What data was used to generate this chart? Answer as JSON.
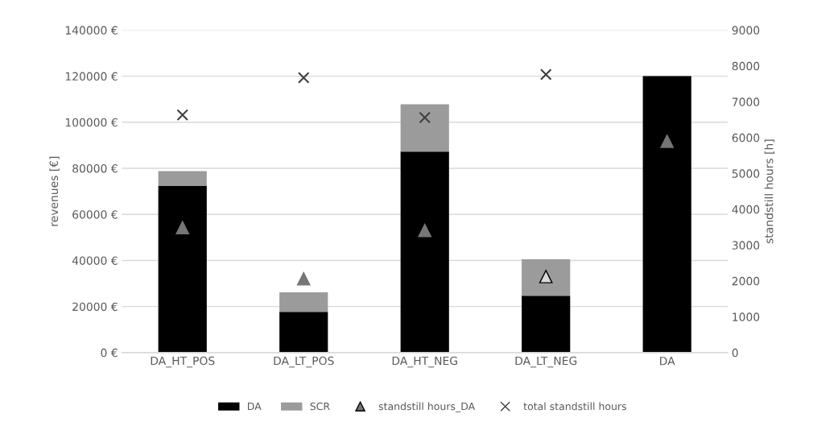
{
  "chart_data": {
    "type": "bar",
    "stacked": true,
    "categories": [
      "DA_HT_POS",
      "DA_LT_POS",
      "DA_HT_NEG",
      "DA_LT_NEG",
      "DA"
    ],
    "series": [
      {
        "name": "DA",
        "color": "#000000",
        "values": [
          72300,
          17700,
          87300,
          24700,
          120000
        ]
      },
      {
        "name": "SCR",
        "color": "#9b9b9b",
        "values": [
          6500,
          8500,
          20500,
          15800,
          null
        ]
      },
      {
        "name": "standstill hours_DA",
        "type": "scatter",
        "axis": "y2",
        "marker": "triangle",
        "color": "#767676",
        "colors": [
          "#767676",
          "#767676",
          "#767676",
          "#d9d9d9",
          "#767676"
        ],
        "values": [
          3490,
          2060,
          3410,
          2120,
          5900
        ]
      },
      {
        "name": "total standstill hours",
        "type": "scatter",
        "axis": "y2",
        "marker": "cross",
        "color": "#404040",
        "values": [
          6630,
          7670,
          6560,
          7760,
          null
        ]
      }
    ],
    "ylabel": "revenues [€]",
    "y2label": "standstill hours [h]",
    "ylim": [
      0,
      140000
    ],
    "yticks": [
      {
        "value": 0,
        "label": "0 €"
      },
      {
        "value": 20000,
        "label": "20000 €"
      },
      {
        "value": 40000,
        "label": "40000 €"
      },
      {
        "value": 60000,
        "label": "60000 €"
      },
      {
        "value": 80000,
        "label": "80000 €"
      },
      {
        "value": 100000,
        "label": "100000 €"
      },
      {
        "value": 120000,
        "label": "120000 €"
      },
      {
        "value": 140000,
        "label": "140000 €"
      }
    ],
    "y2lim": [
      0,
      9000
    ],
    "y2ticks": [
      0,
      1000,
      2000,
      3000,
      4000,
      5000,
      6000,
      7000,
      8000,
      9000
    ],
    "grid": "y",
    "legend": "bottom"
  }
}
